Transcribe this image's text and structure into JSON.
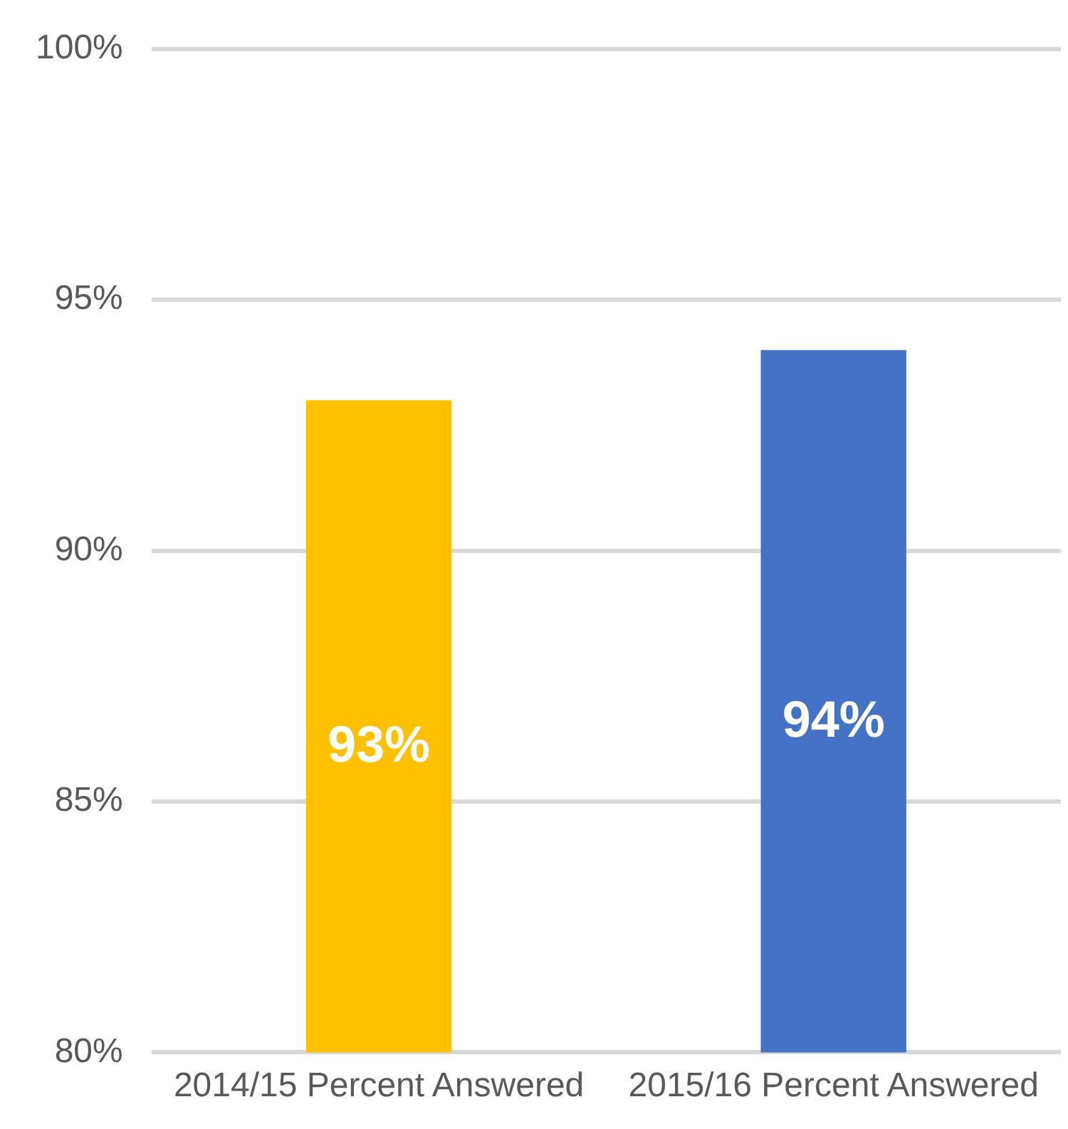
{
  "chart_data": {
    "type": "bar",
    "categories": [
      "2014/15 Percent Answered",
      "2015/16 Percent Answered"
    ],
    "values": [
      93,
      94
    ],
    "colors": [
      "#ffc000",
      "#4472c4"
    ],
    "value_labels": [
      "93%",
      "94%"
    ],
    "ylim": [
      80,
      100
    ],
    "yticks": [
      {
        "value": 80,
        "label": "80%"
      },
      {
        "value": 85,
        "label": "85%"
      },
      {
        "value": 90,
        "label": "90%"
      },
      {
        "value": 95,
        "label": "95%"
      },
      {
        "value": 100,
        "label": "100%"
      }
    ],
    "grid": "y",
    "legend": false
  }
}
